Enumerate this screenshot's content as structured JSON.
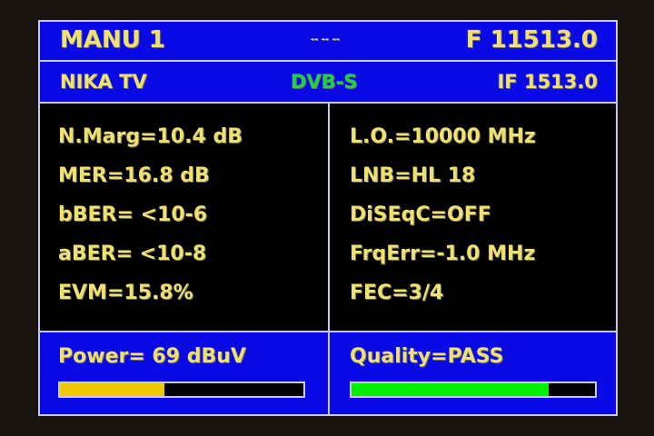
{
  "header": {
    "mode": "MANU 1",
    "dots": "-- -- --",
    "frequency": "F 11513.0",
    "channel": "NIKA TV",
    "standard": "DVB-S",
    "if_freq": "IF 1513.0"
  },
  "left": [
    "N.Marg=10.4 dB",
    "MER=16.8 dB",
    "bBER= <10-6",
    "aBER= <10-8",
    "EVM=15.8%"
  ],
  "right": [
    "L.O.=10000 MHz",
    "LNB=HL 18",
    "DiSEqC=OFF",
    "FrqErr=-1.0 MHz",
    "FEC=3/4"
  ],
  "power": {
    "label": "Power= 69 dBuV",
    "level_percent": 43,
    "color": "#f0c800"
  },
  "quality": {
    "label": "Quality=PASS",
    "level_percent": 81,
    "color": "#00f000"
  },
  "colors": {
    "panel": "#0a0ae6",
    "text": "#f0e070",
    "standard": "#20d040"
  }
}
